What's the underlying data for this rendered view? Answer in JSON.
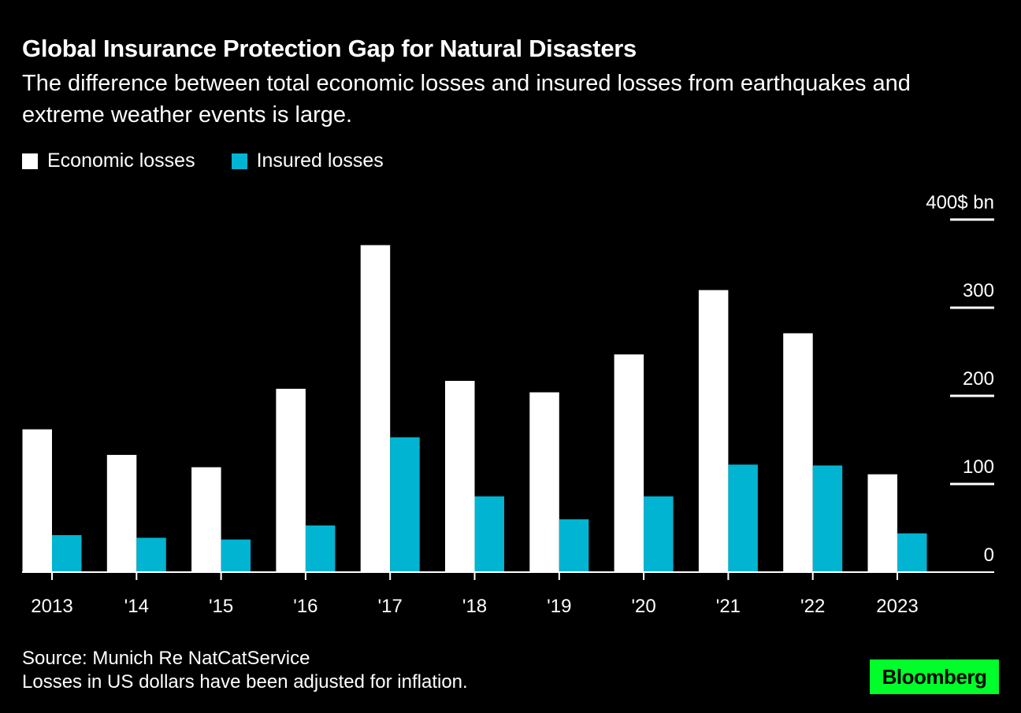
{
  "chart_data": {
    "type": "bar",
    "title": "Global Insurance Protection Gap for Natural Disasters",
    "subtitle": "The difference between total economic losses and insured losses from earthquakes and extreme weather events is large.",
    "categories": [
      "2013",
      "'14",
      "'15",
      "'16",
      "'17",
      "'18",
      "'19",
      "'20",
      "'21",
      "'22",
      "2023"
    ],
    "series": [
      {
        "name": "Economic losses",
        "color": "#ffffff",
        "values": [
          162,
          133,
          119,
          208,
          371,
          217,
          204,
          247,
          320,
          271,
          111
        ]
      },
      {
        "name": "Insured losses",
        "color": "#00b4d2",
        "values": [
          42,
          39,
          37,
          53,
          153,
          86,
          60,
          86,
          122,
          121,
          44
        ]
      }
    ],
    "ylim": [
      0,
      400
    ],
    "yticks": [
      "0",
      "100",
      "200",
      "300",
      "400$ bn"
    ],
    "ytick_values": [
      0,
      100,
      200,
      300,
      400
    ],
    "yaxis_side": "right",
    "legend_position": "top-left",
    "grid": false
  },
  "footer": {
    "source": "Source: Munich Re NatCatService",
    "note": "Losses in US dollars have been adjusted for inflation.",
    "logo": "Bloomberg",
    "logo_color": "#00ff2a"
  }
}
